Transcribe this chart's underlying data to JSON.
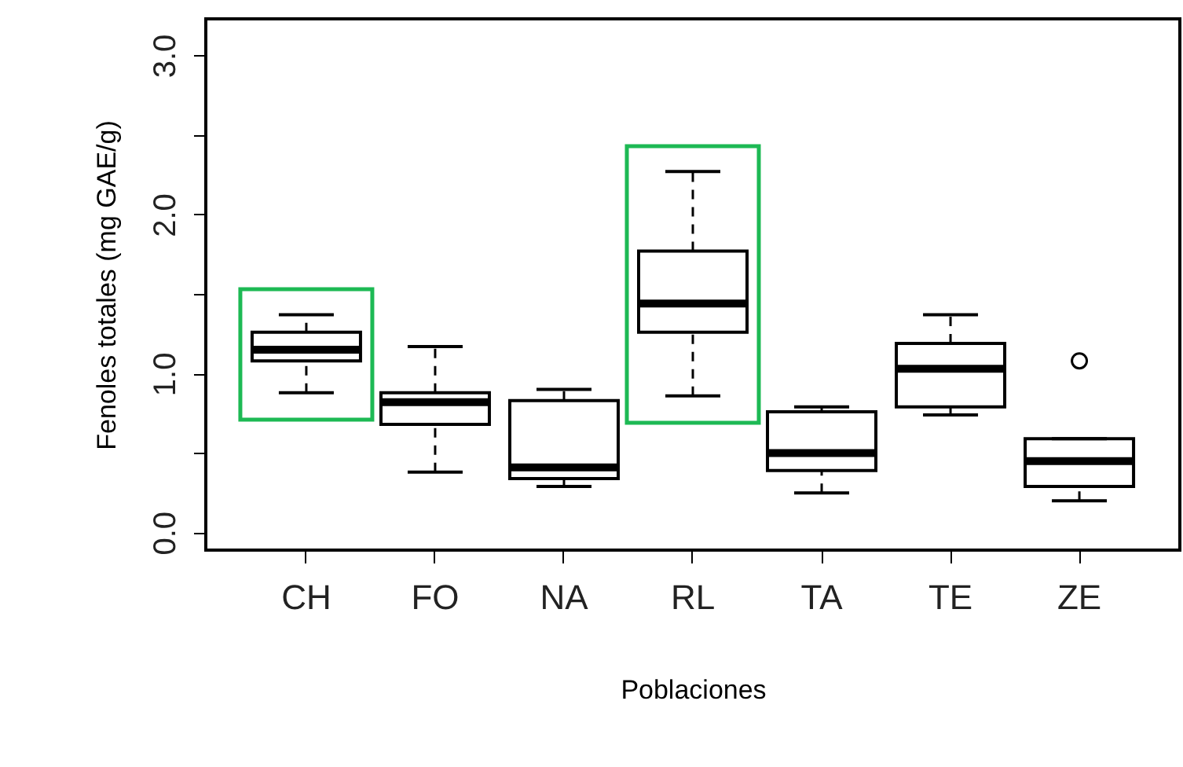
{
  "chart_data": {
    "type": "box",
    "xlabel": "Poblaciones",
    "ylabel": "Fenoles totales (mg GAE/g)",
    "categories": [
      "CH",
      "FO",
      "NA",
      "RL",
      "TA",
      "TE",
      "ZE"
    ],
    "boxes": [
      {
        "low": 0.88,
        "q1": 1.08,
        "median": 1.15,
        "q3": 1.26,
        "high": 1.37
      },
      {
        "low": 0.38,
        "q1": 0.68,
        "median": 0.82,
        "q3": 0.88,
        "high": 1.17
      },
      {
        "low": 0.29,
        "q1": 0.34,
        "median": 0.41,
        "q3": 0.83,
        "high": 0.9
      },
      {
        "low": 0.86,
        "q1": 1.26,
        "median": 1.44,
        "q3": 1.77,
        "high": 2.27
      },
      {
        "low": 0.25,
        "q1": 0.39,
        "median": 0.5,
        "q3": 0.76,
        "high": 0.79
      },
      {
        "low": 0.74,
        "q1": 0.79,
        "median": 1.03,
        "q3": 1.19,
        "high": 1.37
      },
      {
        "low": 0.2,
        "q1": 0.29,
        "median": 0.45,
        "q3": 0.59,
        "high": 0.59,
        "outliers": [
          1.08
        ]
      }
    ],
    "ylim": [
      -0.11,
      3.23
    ],
    "yticks": [
      {
        "value": 0,
        "label": "0.0"
      },
      {
        "value": 0.5,
        "label": null
      },
      {
        "value": 1,
        "label": "1.0"
      },
      {
        "value": 1.5,
        "label": null
      },
      {
        "value": 2,
        "label": "2.0"
      },
      {
        "value": 2.5,
        "label": null
      },
      {
        "value": 3,
        "label": "3.0"
      }
    ],
    "grid": false
  }
}
